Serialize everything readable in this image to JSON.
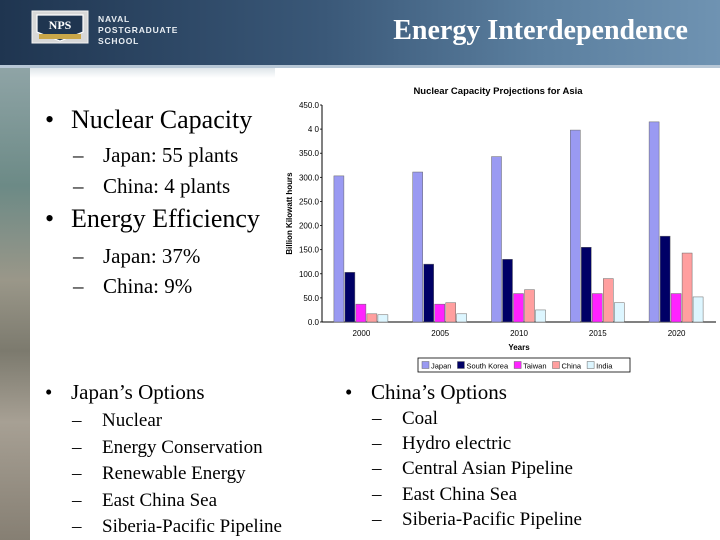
{
  "header": {
    "school_lines": [
      "NAVAL",
      "POSTGRADUATE",
      "SCHOOL"
    ],
    "logo_text": "NPS",
    "title": "Energy Interdependence"
  },
  "bullets": {
    "nuclear_capacity": {
      "label": "Nuclear Capacity",
      "items": [
        "Japan: 55 plants",
        "China: 4 plants"
      ]
    },
    "energy_efficiency": {
      "label": "Energy Efficiency",
      "items": [
        "Japan: 37%",
        "China: 9%"
      ]
    },
    "japan_options": {
      "label": "Japan’s Options",
      "items": [
        "Nuclear",
        "Energy Conservation",
        "Renewable Energy",
        "East China Sea",
        "Siberia-Pacific Pipeline"
      ]
    },
    "china_options": {
      "label": "China’s Options",
      "items": [
        "Coal",
        "Hydro electric",
        "Central Asian Pipeline",
        "East China Sea",
        "Siberia-Pacific Pipeline"
      ]
    }
  },
  "symbols": {
    "bullet": "•",
    "dash": "–"
  },
  "chart_data": {
    "type": "bar",
    "title": "Nuclear Capacity Projections for Asia",
    "xlabel": "Years",
    "ylabel": "Billion Kilowatt hours",
    "categories": [
      "2000",
      "2005",
      "2010",
      "2015",
      "2020"
    ],
    "ylim": [
      0,
      450
    ],
    "yticks": [
      "0.0",
      "50.0",
      "100.0",
      "150.0",
      "200.0",
      "250.0",
      "300.0",
      "350.0",
      "4 0",
      "450.0"
    ],
    "grid": false,
    "legend_position": "bottom",
    "series": [
      {
        "name": "Japan",
        "color": "#9a9af2",
        "values": [
          303,
          311,
          343,
          398,
          415
        ]
      },
      {
        "name": "South Korea",
        "color": "#000066",
        "values": [
          103,
          120,
          130,
          155,
          178
        ]
      },
      {
        "name": "Taiwan",
        "color": "#ff22ff",
        "values": [
          37,
          37,
          59,
          59,
          59
        ]
      },
      {
        "name": "China",
        "color": "#ff9f9f",
        "values": [
          17,
          40,
          67,
          90,
          143
        ]
      },
      {
        "name": "India",
        "color": "#ddf6ff",
        "values": [
          15,
          17,
          25,
          40,
          52
        ]
      }
    ]
  }
}
